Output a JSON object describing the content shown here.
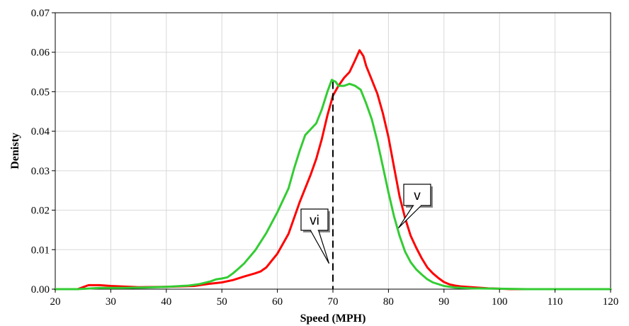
{
  "chart_data": {
    "type": "line",
    "title": "",
    "xlabel": "Speed (MPH)",
    "ylabel": "Denisty",
    "xlim": [
      20,
      120
    ],
    "ylim": [
      0,
      0.07
    ],
    "xticks": [
      20,
      30,
      40,
      50,
      60,
      70,
      80,
      90,
      100,
      110,
      120
    ],
    "yticks": [
      "0.00",
      "0.01",
      "0.02",
      "0.03",
      "0.04",
      "0.05",
      "0.06",
      "0.07"
    ],
    "grid": true,
    "legend": "none",
    "series": [
      {
        "color": "#ff0000",
        "x": [
          20,
          24,
          26,
          28,
          30,
          35,
          40,
          45,
          48,
          50,
          52,
          54,
          56,
          57,
          58,
          60,
          62,
          64,
          66,
          67,
          68,
          69,
          70,
          71,
          72,
          73,
          74,
          74.8,
          75.5,
          76,
          77,
          78,
          79,
          80,
          81,
          82,
          83,
          84,
          85,
          86,
          87,
          88,
          89,
          90,
          91,
          92,
          93,
          95,
          98,
          100,
          102,
          105,
          110,
          120
        ],
        "y": [
          0,
          0,
          0.001,
          0.001,
          0.0008,
          0.0005,
          0.0006,
          0.0008,
          0.0014,
          0.0017,
          0.0023,
          0.0032,
          0.004,
          0.0045,
          0.0055,
          0.009,
          0.014,
          0.022,
          0.029,
          0.033,
          0.038,
          0.044,
          0.049,
          0.0515,
          0.0535,
          0.055,
          0.058,
          0.0605,
          0.059,
          0.0565,
          0.053,
          0.0495,
          0.0445,
          0.0385,
          0.031,
          0.0235,
          0.018,
          0.0135,
          0.0105,
          0.0078,
          0.0055,
          0.004,
          0.0028,
          0.0018,
          0.0012,
          0.0009,
          0.0007,
          0.0005,
          0.0002,
          0.0001,
          0,
          0,
          0,
          0
        ]
      },
      {
        "color": "#33cc33",
        "x": [
          20,
          24,
          28,
          32,
          36,
          40,
          44,
          46,
          48,
          49,
          50,
          51,
          52,
          53,
          54,
          56,
          58,
          60,
          62,
          63,
          64,
          65,
          66,
          67,
          68,
          69,
          69.8,
          70.5,
          71,
          71.5,
          72,
          73,
          74,
          75,
          76,
          77,
          78,
          79,
          80,
          81,
          82,
          83,
          84,
          85,
          86,
          87,
          88,
          90,
          92,
          95,
          100,
          105,
          110,
          120
        ],
        "y": [
          0,
          0,
          0.0003,
          0.0003,
          0.0004,
          0.0006,
          0.0009,
          0.0013,
          0.002,
          0.0025,
          0.0027,
          0.003,
          0.004,
          0.0052,
          0.0065,
          0.0098,
          0.0142,
          0.0195,
          0.0255,
          0.0305,
          0.035,
          0.039,
          0.0405,
          0.042,
          0.0455,
          0.05,
          0.053,
          0.0525,
          0.0515,
          0.0515,
          0.0515,
          0.052,
          0.0515,
          0.0505,
          0.047,
          0.043,
          0.0375,
          0.031,
          0.0245,
          0.0185,
          0.0135,
          0.0095,
          0.0068,
          0.005,
          0.0037,
          0.0025,
          0.0017,
          0.0008,
          0.0004,
          0.0002,
          0.0001,
          0,
          0,
          0
        ]
      }
    ],
    "reference_line": {
      "x": 70,
      "y_top": 0.0525,
      "style": "dashed",
      "color": "#000000"
    },
    "annotations": [
      {
        "text": "vi",
        "points_to": {
          "x": 69.3,
          "y": 0.0065
        }
      },
      {
        "text": "v",
        "points_to": {
          "x": 81.8,
          "y": 0.0155
        }
      }
    ]
  }
}
